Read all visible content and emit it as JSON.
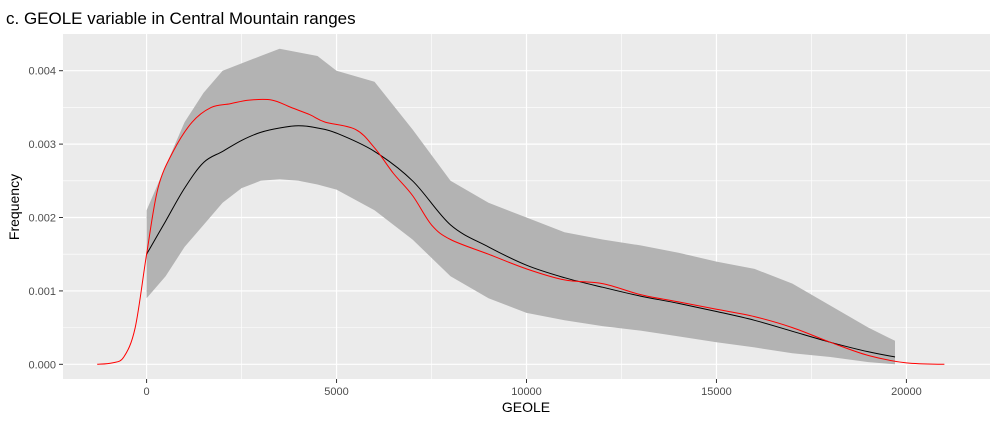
{
  "chart_data": {
    "type": "area",
    "title": "c. GEOLE variable in Central Mountain ranges",
    "xlabel": "GEOLE",
    "ylabel": "Frequency",
    "xlim": [
      -2200,
      22200
    ],
    "ylim": [
      -0.0002,
      0.0045
    ],
    "x_ticks": [
      0,
      5000,
      10000,
      15000,
      20000
    ],
    "x_tick_labels": [
      "0",
      "5000",
      "10000",
      "15000",
      "20000"
    ],
    "y_ticks": [
      0.0,
      0.001,
      0.002,
      0.003,
      0.004
    ],
    "y_tick_labels": [
      "0.000",
      "0.001",
      "0.002",
      "0.003",
      "0.004"
    ],
    "grid": true,
    "colors": {
      "panel_bg": "#ebebeb",
      "grid": "#ffffff",
      "ribbon": "#b3b3b3",
      "mean_line": "#000000",
      "observed_line": "#ff0000"
    },
    "series": [
      {
        "role": "ribbon",
        "x": [
          0,
          500,
          1000,
          1500,
          2000,
          2500,
          3000,
          3500,
          4000,
          4500,
          5000,
          6000,
          7000,
          8000,
          9000,
          10000,
          11000,
          12000,
          13000,
          14000,
          15000,
          16000,
          17000,
          18000,
          19000,
          19700
        ],
        "lower": [
          0.0009,
          0.0012,
          0.0016,
          0.0019,
          0.0022,
          0.0024,
          0.0025,
          0.00252,
          0.0025,
          0.00245,
          0.00238,
          0.0021,
          0.0017,
          0.0012,
          0.0009,
          0.0007,
          0.0006,
          0.00052,
          0.00046,
          0.00038,
          0.0003,
          0.00023,
          0.00015,
          0.0001,
          3e-05,
          0.0
        ],
        "upper": [
          0.0021,
          0.0027,
          0.0033,
          0.0037,
          0.004,
          0.0041,
          0.0042,
          0.0043,
          0.00425,
          0.0042,
          0.004,
          0.00385,
          0.0032,
          0.0025,
          0.0022,
          0.002,
          0.0018,
          0.0017,
          0.00162,
          0.00152,
          0.0014,
          0.0013,
          0.0011,
          0.0008,
          0.0005,
          0.00032
        ]
      },
      {
        "role": "mean",
        "x": [
          0,
          500,
          1000,
          1500,
          2000,
          2500,
          3000,
          3500,
          4000,
          4500,
          5000,
          6000,
          7000,
          8000,
          9000,
          10000,
          11000,
          12000,
          13000,
          14000,
          15000,
          16000,
          17000,
          18000,
          19000,
          19700
        ],
        "y": [
          0.0015,
          0.00195,
          0.0024,
          0.00275,
          0.0029,
          0.00305,
          0.00316,
          0.00322,
          0.00325,
          0.00322,
          0.00315,
          0.0029,
          0.0025,
          0.0019,
          0.0016,
          0.00135,
          0.00118,
          0.00105,
          0.00093,
          0.00083,
          0.00072,
          0.0006,
          0.00045,
          0.0003,
          0.00017,
          0.0001
        ]
      },
      {
        "role": "observed",
        "x": [
          -1300,
          -900,
          -600,
          -300,
          0,
          300,
          700,
          1200,
          1700,
          2200,
          2700,
          3300,
          3800,
          4300,
          4700,
          5500,
          6000,
          6500,
          7000,
          7500,
          8000,
          9000,
          10000,
          11000,
          12000,
          13000,
          14000,
          15000,
          16000,
          17000,
          18000,
          19000,
          20000,
          21000
        ],
        "y": [
          0.0,
          2e-05,
          0.0001,
          0.0005,
          0.0015,
          0.0024,
          0.0029,
          0.0033,
          0.0035,
          0.00355,
          0.0036,
          0.0036,
          0.0035,
          0.0034,
          0.0033,
          0.0032,
          0.00295,
          0.0026,
          0.0023,
          0.0019,
          0.0017,
          0.0015,
          0.0013,
          0.00115,
          0.0011,
          0.00095,
          0.00085,
          0.00075,
          0.00065,
          0.0005,
          0.0003,
          0.00012,
          2e-05,
          0.0
        ]
      }
    ]
  }
}
